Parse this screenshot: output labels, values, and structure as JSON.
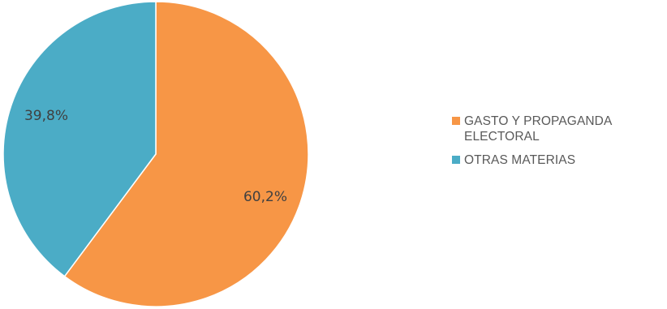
{
  "chart_data": {
    "type": "pie",
    "categories": [
      "GASTO Y PROPAGANDA ELECTORAL",
      "OTRAS MATERIAS"
    ],
    "values": [
      60.2,
      39.8
    ],
    "labels": [
      "60,2%",
      "39,8%"
    ],
    "colors": [
      "#F79646",
      "#4BACC6"
    ],
    "start_angle_deg": 0,
    "direction": "clockwise",
    "legend_position": "right"
  }
}
